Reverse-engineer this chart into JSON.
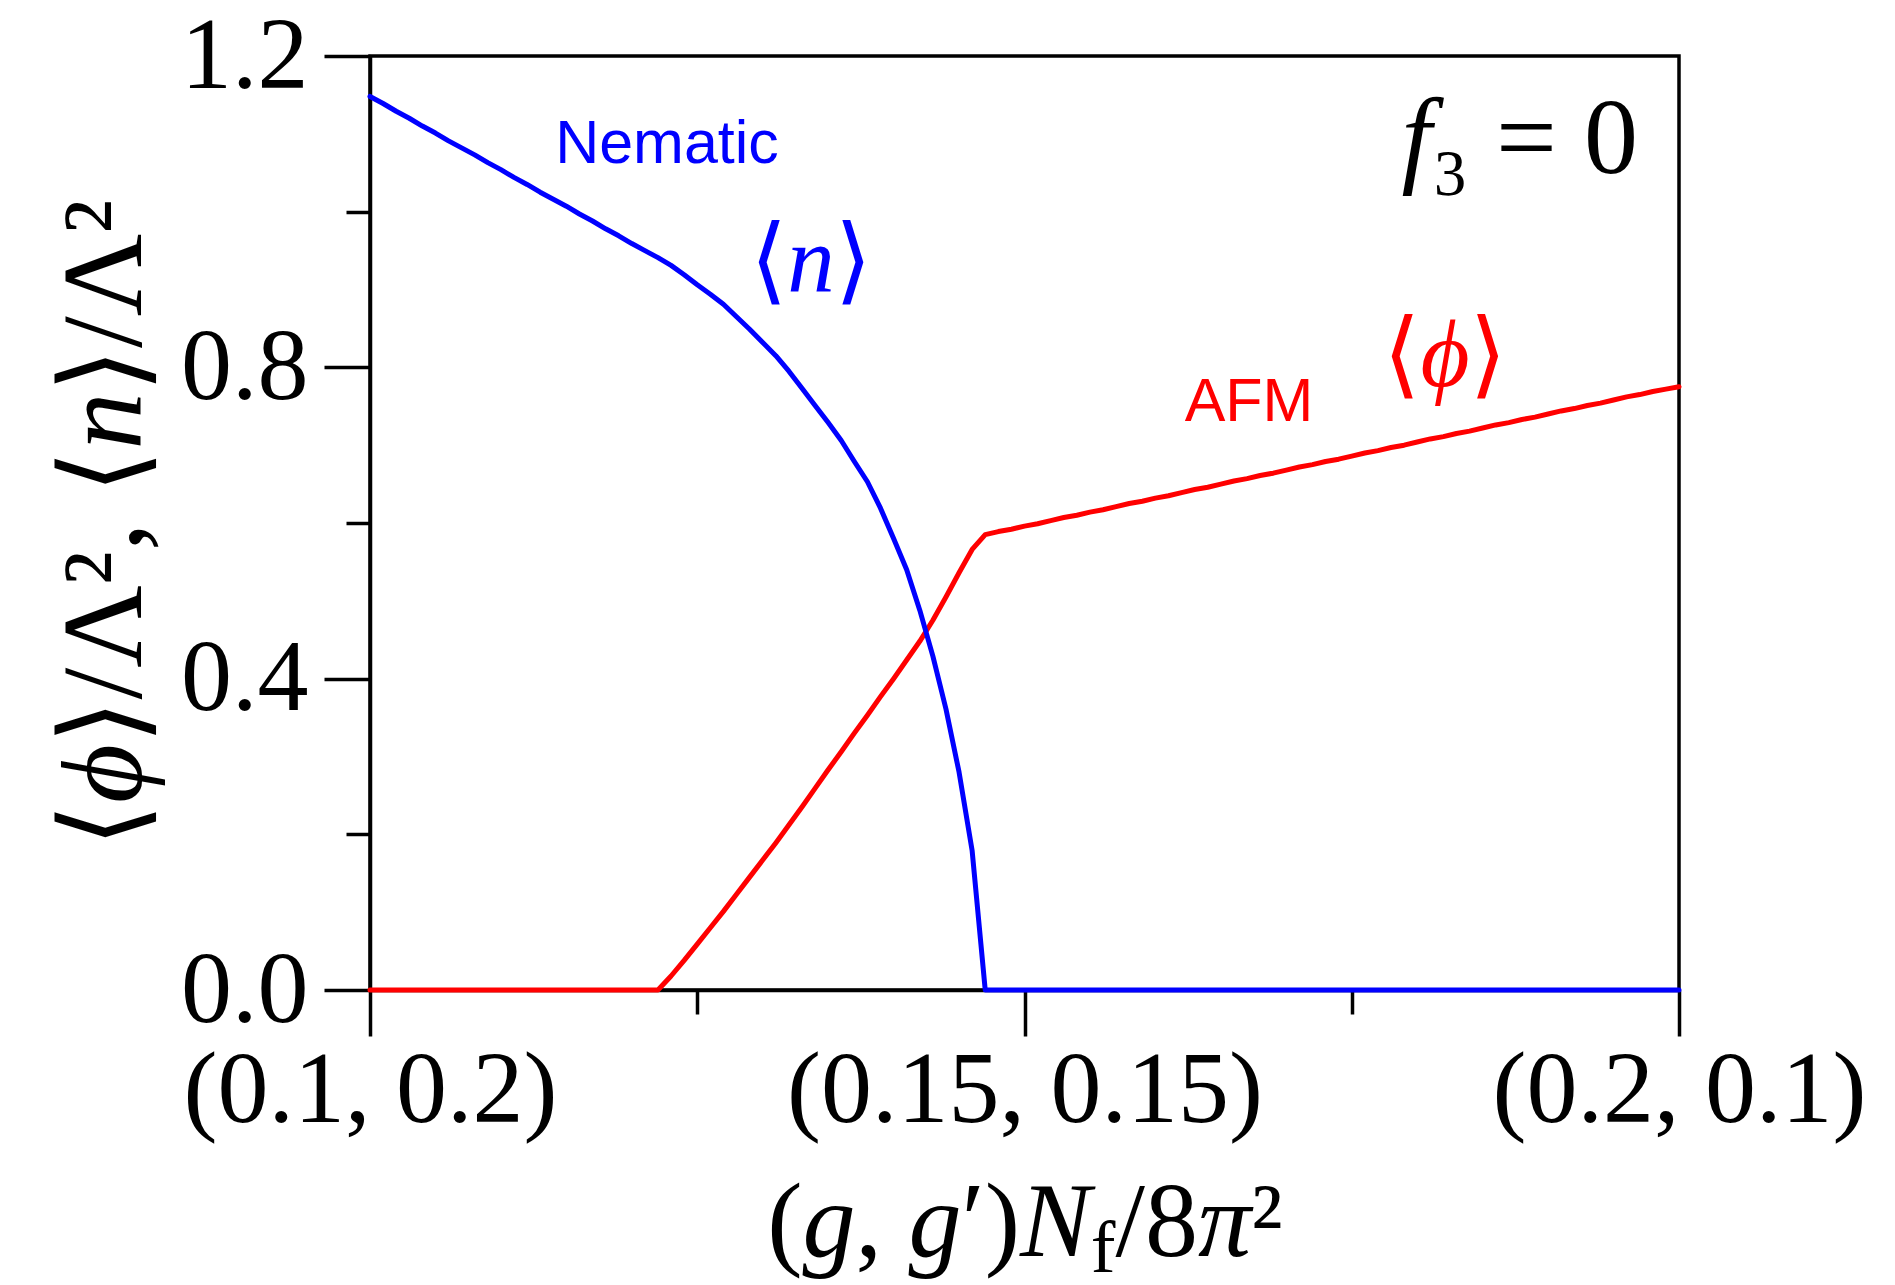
{
  "chart_data": {
    "type": "line",
    "xlabel": "(g, g′)N$_{f}$/8π²",
    "ylabel": "⟨ϕ⟩/Λ², ⟨n⟩/Λ²",
    "categories": [
      "(0.1, 0.2)",
      null,
      null,
      null,
      null,
      null,
      null,
      null,
      null,
      null,
      null,
      null,
      null,
      null,
      null,
      null,
      null,
      null,
      null,
      null,
      null,
      null,
      null,
      null,
      null,
      null,
      null,
      null,
      null,
      null,
      null,
      null,
      null,
      null,
      null,
      null,
      null,
      null,
      null,
      null,
      null,
      null,
      null,
      null,
      null,
      null,
      null,
      null,
      null,
      null,
      "(0.15, 0.15)",
      null,
      null,
      null,
      null,
      null,
      null,
      null,
      null,
      null,
      null,
      null,
      null,
      null,
      null,
      null,
      null,
      null,
      null,
      null,
      null,
      null,
      null,
      null,
      null,
      null,
      null,
      null,
      null,
      null,
      null,
      null,
      null,
      null,
      null,
      null,
      null,
      null,
      null,
      null,
      null,
      null,
      null,
      null,
      null,
      null,
      null,
      null,
      null,
      null,
      "(0.2, 0.1)"
    ],
    "ylim": [
      0,
      1.2
    ],
    "yticks": [
      {
        "value": 0,
        "label": "0.0"
      },
      0.4,
      0.8,
      1.2
    ],
    "grid": false,
    "series": [
      {
        "name": "⟨ϕ⟩",
        "color": "#ff0000",
        "values": [
          0,
          0,
          0,
          0,
          0,
          0,
          0,
          0,
          0,
          0,
          0,
          0,
          0,
          0,
          0,
          0,
          0,
          0,
          0,
          0,
          0,
          0,
          0,
          0.018,
          0.038,
          0.059,
          0.08,
          0.101,
          0.123,
          0.145,
          0.167,
          0.189,
          0.212,
          0.235,
          0.259,
          0.283,
          0.306,
          0.33,
          0.353,
          0.377,
          0.4,
          0.424,
          0.448,
          0.475,
          0.505,
          0.536,
          0.566,
          0.585,
          0.589,
          0.592,
          0.596,
          0.599,
          0.603,
          0.607,
          0.61,
          0.614,
          0.617,
          0.621,
          0.625,
          0.628,
          0.632,
          0.635,
          0.639,
          0.643,
          0.646,
          0.65,
          0.654,
          0.657,
          0.661,
          0.664,
          0.668,
          0.672,
          0.675,
          0.679,
          0.682,
          0.686,
          0.69,
          0.693,
          0.697,
          0.7,
          0.704,
          0.708,
          0.711,
          0.715,
          0.718,
          0.722,
          0.726,
          0.729,
          0.733,
          0.736,
          0.74,
          0.744,
          0.747,
          0.751,
          0.754,
          0.758,
          0.762,
          0.765,
          0.769,
          0.772,
          0.775
        ]
      },
      {
        "name": "⟨n⟩",
        "color": "#0000ff",
        "values": [
          1.148,
          1.139,
          1.129,
          1.12,
          1.11,
          1.101,
          1.091,
          1.082,
          1.073,
          1.063,
          1.054,
          1.044,
          1.035,
          1.025,
          1.016,
          1.007,
          0.997,
          0.988,
          0.978,
          0.969,
          0.959,
          0.95,
          0.941,
          0.931,
          0.919,
          0.906,
          0.894,
          0.881,
          0.865,
          0.849,
          0.832,
          0.815,
          0.795,
          0.773,
          0.751,
          0.729,
          0.706,
          0.679,
          0.653,
          0.619,
          0.58,
          0.54,
          0.488,
          0.429,
          0.361,
          0.28,
          0.179,
          0,
          0,
          0,
          0,
          0,
          0,
          0,
          0,
          0,
          0,
          0,
          0,
          0,
          0,
          0,
          0,
          0,
          0,
          0,
          0,
          0,
          0,
          0,
          0,
          0,
          0,
          0,
          0,
          0,
          0,
          0,
          0,
          0,
          0,
          0,
          0,
          0,
          0,
          0,
          0,
          0,
          0,
          0,
          0,
          0,
          0,
          0,
          0,
          0,
          0,
          0,
          0,
          0,
          0
        ]
      }
    ],
    "annotations": [
      "Nematic",
      "AFM",
      "f₃ = 0"
    ]
  }
}
